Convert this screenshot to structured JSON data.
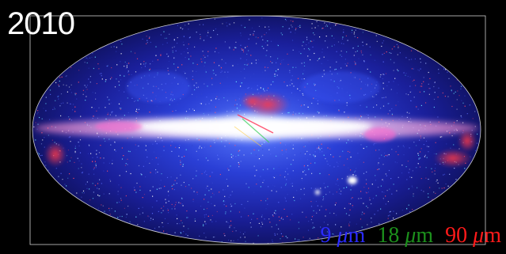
{
  "year": "2010",
  "bands": [
    {
      "value": "9",
      "unit_symbol": "μ",
      "unit_suffix": "m",
      "color": "#2b2bff"
    },
    {
      "value": "18",
      "unit_symbol": "μ",
      "unit_suffix": "m",
      "color": "#1c8f1c"
    },
    {
      "value": "90",
      "unit_symbol": "μ",
      "unit_suffix": "m",
      "color": "#ff1a1a"
    }
  ],
  "colors": {
    "background": "#000000",
    "frame": "#cfcfcf",
    "milky_way_core": "#ffffff",
    "diffuse_blue": "#1a2ab0",
    "dust_red": "#ff2a2a"
  }
}
